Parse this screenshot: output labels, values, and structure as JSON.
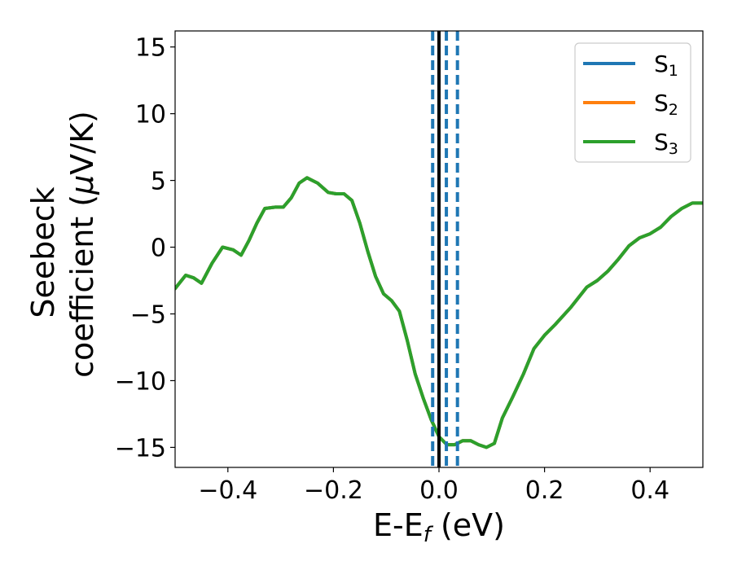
{
  "chart_data": {
    "type": "line",
    "xlabel_main": "E-E",
    "xlabel_sub": "f",
    "xlabel_unit": " (eV)",
    "ylabel_line1": "Seebeck",
    "ylabel_line2_text": "coefficient  (",
    "ylabel_mu": "μ",
    "ylabel_unit": "V/K)",
    "xlim": [
      -0.5,
      0.5
    ],
    "ylim": [
      -16.5,
      16.2
    ],
    "xticks": [
      -0.4,
      -0.2,
      0.0,
      0.2,
      0.4
    ],
    "xtick_labels": [
      "−0.4",
      "−0.2",
      "0.0",
      "0.2",
      "0.4"
    ],
    "yticks": [
      -15,
      -10,
      -5,
      0,
      5,
      10,
      15
    ],
    "ytick_labels": [
      "−15",
      "−10",
      "−5",
      "0",
      "5",
      "10",
      "15"
    ],
    "grid": false,
    "legend_position": "top-right",
    "vlines": [
      {
        "x": -0.012,
        "style": "dashed",
        "color": "#1f77b4"
      },
      {
        "x": 0.0,
        "style": "solid",
        "color": "#000000"
      },
      {
        "x": 0.014,
        "style": "dashed",
        "color": "#1f77b4"
      },
      {
        "x": 0.035,
        "style": "dashed",
        "color": "#1f77b4"
      }
    ],
    "x": [
      -0.5,
      -0.48,
      -0.465,
      -0.45,
      -0.43,
      -0.41,
      -0.39,
      -0.375,
      -0.36,
      -0.345,
      -0.33,
      -0.31,
      -0.295,
      -0.28,
      -0.265,
      -0.25,
      -0.23,
      -0.21,
      -0.195,
      -0.18,
      -0.165,
      -0.15,
      -0.135,
      -0.12,
      -0.105,
      -0.09,
      -0.075,
      -0.06,
      -0.045,
      -0.03,
      -0.015,
      0.0,
      0.015,
      0.03,
      0.045,
      0.06,
      0.075,
      0.09,
      0.105,
      0.12,
      0.14,
      0.16,
      0.18,
      0.2,
      0.22,
      0.25,
      0.28,
      0.3,
      0.32,
      0.34,
      0.36,
      0.38,
      0.4,
      0.42,
      0.44,
      0.46,
      0.48,
      0.5
    ],
    "series": [
      {
        "name": "S",
        "sub": "1",
        "color": "#1f77b4",
        "values": [
          -3.1,
          -2.1,
          -2.3,
          -2.7,
          -1.2,
          0.0,
          -0.2,
          -0.6,
          0.5,
          1.8,
          2.9,
          3.0,
          3.0,
          3.7,
          4.8,
          5.2,
          4.8,
          4.1,
          4.0,
          4.0,
          3.5,
          1.8,
          -0.3,
          -2.2,
          -3.5,
          -4.0,
          -4.8,
          -7.0,
          -9.5,
          -11.3,
          -12.9,
          -14.2,
          -14.8,
          -14.8,
          -14.5,
          -14.5,
          -14.8,
          -15.0,
          -14.7,
          -12.8,
          -11.2,
          -9.5,
          -7.6,
          -6.6,
          -5.8,
          -4.5,
          -3.0,
          -2.5,
          -1.8,
          -0.9,
          0.1,
          0.7,
          1.0,
          1.5,
          2.3,
          2.9,
          3.3,
          3.3
        ]
      },
      {
        "name": "S",
        "sub": "2",
        "color": "#ff7f0e",
        "values": [
          -3.1,
          -2.1,
          -2.3,
          -2.7,
          -1.2,
          0.0,
          -0.2,
          -0.6,
          0.5,
          1.8,
          2.9,
          3.0,
          3.0,
          3.7,
          4.8,
          5.2,
          4.8,
          4.1,
          4.0,
          4.0,
          3.5,
          1.8,
          -0.3,
          -2.2,
          -3.5,
          -4.0,
          -4.8,
          -7.0,
          -9.5,
          -11.3,
          -12.9,
          -14.2,
          -14.8,
          -14.8,
          -14.5,
          -14.5,
          -14.8,
          -15.0,
          -14.7,
          -12.8,
          -11.2,
          -9.5,
          -7.6,
          -6.6,
          -5.8,
          -4.5,
          -3.0,
          -2.5,
          -1.8,
          -0.9,
          0.1,
          0.7,
          1.0,
          1.5,
          2.3,
          2.9,
          3.3,
          3.3
        ]
      },
      {
        "name": "S",
        "sub": "3",
        "color": "#2ca02c",
        "values": [
          -3.1,
          -2.1,
          -2.3,
          -2.7,
          -1.2,
          0.0,
          -0.2,
          -0.6,
          0.5,
          1.8,
          2.9,
          3.0,
          3.0,
          3.7,
          4.8,
          5.2,
          4.8,
          4.1,
          4.0,
          4.0,
          3.5,
          1.8,
          -0.3,
          -2.2,
          -3.5,
          -4.0,
          -4.8,
          -7.0,
          -9.5,
          -11.3,
          -12.9,
          -14.2,
          -14.8,
          -14.8,
          -14.5,
          -14.5,
          -14.8,
          -15.0,
          -14.7,
          -12.8,
          -11.2,
          -9.5,
          -7.6,
          -6.6,
          -5.8,
          -4.5,
          -3.0,
          -2.5,
          -1.8,
          -0.9,
          0.1,
          0.7,
          1.0,
          1.5,
          2.3,
          2.9,
          3.3,
          3.3
        ]
      }
    ]
  }
}
